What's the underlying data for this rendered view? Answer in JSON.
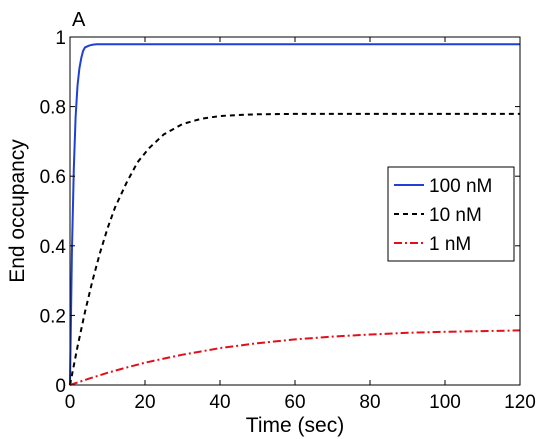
{
  "chart_data": {
    "type": "line",
    "panel_label": "A",
    "xlabel": "Time (sec)",
    "ylabel": "End occupancy",
    "xlim": [
      0,
      120
    ],
    "ylim": [
      0,
      1
    ],
    "xticks": [
      0,
      20,
      40,
      60,
      80,
      100,
      120
    ],
    "xtick_labels": [
      "0",
      "20",
      "40",
      "60",
      "80",
      "100",
      "120"
    ],
    "yticks": [
      0,
      0.2,
      0.4,
      0.6,
      0.8,
      1
    ],
    "ytick_labels": [
      "0",
      "0.2",
      "0.4",
      "0.6",
      "0.8",
      "1"
    ],
    "grid": false,
    "legend_position": "right",
    "series": [
      {
        "name": "100 nM",
        "color": "#1f3fd6",
        "style": "solid",
        "x": [
          0,
          0.5,
          1,
          1.5,
          2,
          2.5,
          3,
          3.5,
          4,
          5,
          6,
          7,
          8,
          10,
          15,
          20,
          40,
          60,
          80,
          100,
          120
        ],
        "y": [
          0,
          0.38,
          0.62,
          0.77,
          0.86,
          0.91,
          0.94,
          0.96,
          0.97,
          0.975,
          0.978,
          0.979,
          0.979,
          0.979,
          0.979,
          0.979,
          0.979,
          0.979,
          0.979,
          0.979,
          0.979
        ]
      },
      {
        "name": "10 nM",
        "color": "#000000",
        "style": "dashed",
        "x": [
          0,
          2,
          4,
          6,
          8,
          10,
          12,
          15,
          18,
          21,
          25,
          30,
          35,
          40,
          45,
          50,
          60,
          70,
          80,
          90,
          100,
          110,
          120
        ],
        "y": [
          0,
          0.11,
          0.21,
          0.3,
          0.38,
          0.45,
          0.51,
          0.58,
          0.64,
          0.68,
          0.72,
          0.75,
          0.765,
          0.773,
          0.776,
          0.778,
          0.779,
          0.779,
          0.779,
          0.779,
          0.779,
          0.779,
          0.779
        ]
      },
      {
        "name": "1 nM",
        "color": "#e0101a",
        "style": "dashdot",
        "x": [
          0,
          5,
          10,
          15,
          20,
          25,
          30,
          40,
          50,
          60,
          70,
          80,
          90,
          100,
          110,
          120
        ],
        "y": [
          0,
          0.018,
          0.035,
          0.05,
          0.064,
          0.076,
          0.087,
          0.106,
          0.12,
          0.131,
          0.139,
          0.145,
          0.15,
          0.153,
          0.155,
          0.157
        ]
      }
    ]
  }
}
